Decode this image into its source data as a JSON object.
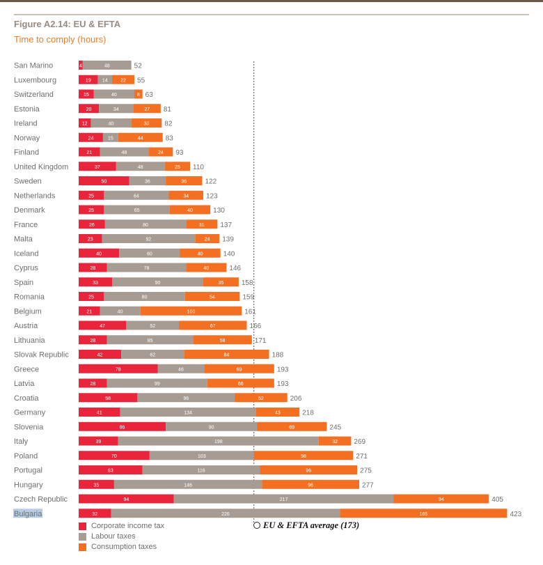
{
  "figure": {
    "title": "Figure A2.14: EU & EFTA",
    "subtitle": "Time to comply (hours)"
  },
  "colors": {
    "corporate": "#e8253b",
    "labour": "#a79c94",
    "consumption": "#f36f21",
    "title": "#9a8b80",
    "subtitle": "#ee7d22",
    "highlight": "#b7cde6"
  },
  "chart_data": {
    "type": "bar",
    "orientation": "horizontal",
    "stacked": true,
    "title": "Figure A2.14: EU & EFTA",
    "subtitle": "Time to comply (hours)",
    "highlighted_category": "Bulgaria",
    "categories": [
      "San Marino",
      "Luxembourg",
      "Switzerland",
      "Estonia",
      "Ireland",
      "Norway",
      "Finland",
      "United Kingdom",
      "Sweden",
      "Netherlands",
      "Denmark",
      "France",
      "Malta",
      "Iceland",
      "Cyprus",
      "Spain",
      "Romania",
      "Belgium",
      "Austria",
      "Lithuania",
      "Slovak Republic",
      "Greece",
      "Latvia",
      "Croatia",
      "Germany",
      "Slovenia",
      "Italy",
      "Poland",
      "Portugal",
      "Hungary",
      "Czech Republic",
      "Bulgaria"
    ],
    "series": [
      {
        "name": "Corporate income tax",
        "color": "#e8253b",
        "values": [
          4,
          19,
          15,
          20,
          12,
          24,
          21,
          37,
          50,
          25,
          25,
          26,
          23,
          40,
          28,
          33,
          25,
          21,
          47,
          28,
          42,
          78,
          28,
          58,
          41,
          86,
          39,
          70,
          63,
          35,
          94,
          32
        ]
      },
      {
        "name": "Labour taxes",
        "color": "#a79c94",
        "values": [
          48,
          14,
          40,
          34,
          40,
          15,
          48,
          48,
          36,
          64,
          65,
          80,
          92,
          60,
          78,
          90,
          80,
          40,
          52,
          85,
          62,
          46,
          99,
          96,
          134,
          90,
          198,
          103,
          116,
          146,
          217,
          226
        ]
      },
      {
        "name": "Consumption taxes",
        "color": "#f36f21",
        "values": [
          0,
          22,
          8,
          27,
          30,
          44,
          24,
          25,
          36,
          34,
          40,
          31,
          24,
          40,
          40,
          35,
          54,
          100,
          67,
          58,
          84,
          69,
          66,
          52,
          43,
          69,
          32,
          98,
          96,
          96,
          94,
          165
        ]
      }
    ],
    "totals": [
      52,
      55,
      63,
      81,
      82,
      83,
      93,
      110,
      122,
      123,
      130,
      137,
      139,
      140,
      146,
      158,
      159,
      161,
      166,
      171,
      188,
      193,
      193,
      206,
      218,
      245,
      269,
      271,
      275,
      277,
      405,
      423
    ],
    "average": {
      "value": 173,
      "label": "EU & EFTA average (173)"
    },
    "legend": [
      "Corporate income tax",
      "Labour taxes",
      "Consumption taxes"
    ],
    "legend_position": "bottom-left"
  }
}
